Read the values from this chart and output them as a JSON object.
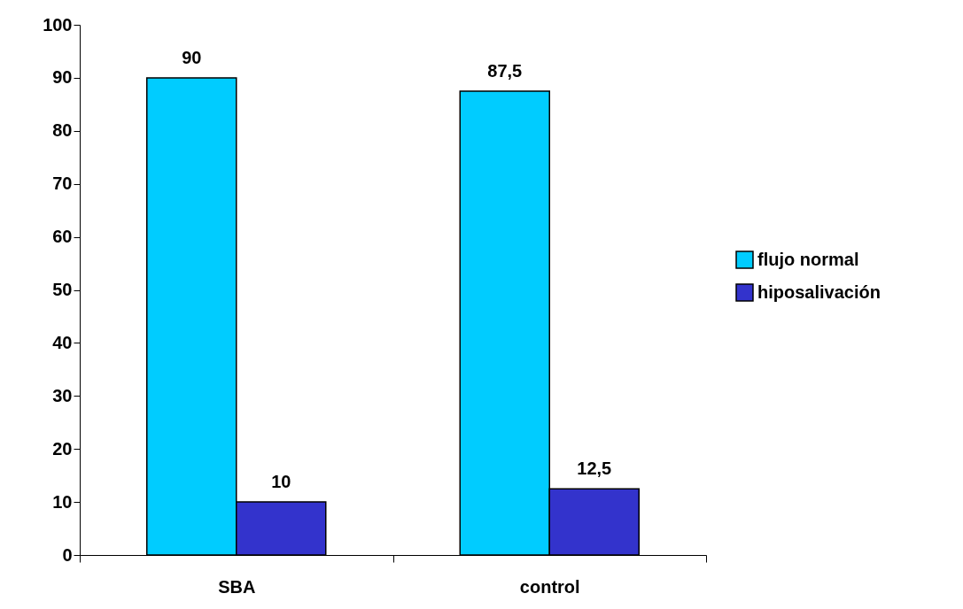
{
  "chart_data": {
    "type": "bar",
    "categories": [
      "SBA",
      "control"
    ],
    "series": [
      {
        "name": "flujo normal",
        "color": "#00ccff",
        "values": [
          90,
          87.5
        ],
        "value_labels": [
          "90",
          "87,5"
        ]
      },
      {
        "name": "hiposalivación",
        "color": "#3333cc",
        "values": [
          10,
          12.5
        ],
        "value_labels": [
          "10",
          "12,5"
        ]
      }
    ],
    "ylim": [
      0,
      100
    ],
    "yticks": [
      0,
      10,
      20,
      30,
      40,
      50,
      60,
      70,
      80,
      90,
      100
    ],
    "grid": false,
    "legend": "right"
  }
}
